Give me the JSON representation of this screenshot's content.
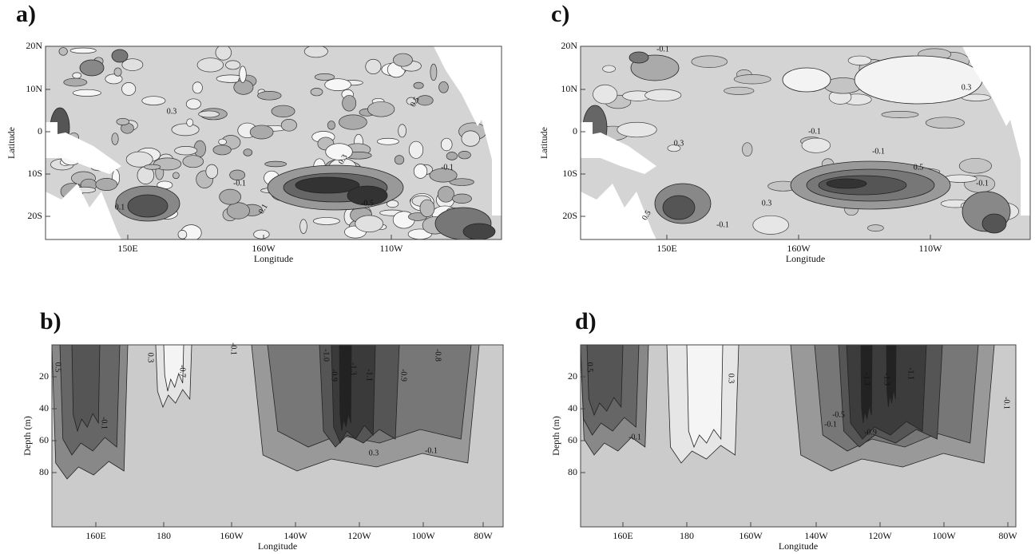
{
  "panels": [
    {
      "label": "a)",
      "xlabel": "Longitude",
      "ylabel": "Latitude",
      "xticks": [
        "150E",
        "160W",
        "110W"
      ],
      "yticks": [
        "20N",
        "10N",
        "0",
        "10S",
        "20S"
      ],
      "contour_labels": [
        "0.3",
        "-0.1",
        "0.1",
        "0.3",
        "-0.5",
        "0.5",
        "-0.1",
        "0.1"
      ]
    },
    {
      "label": "b)",
      "xlabel": "Longitude",
      "ylabel": "Depth (m)",
      "xticks": [
        "160E",
        "180",
        "160W",
        "140W",
        "120W",
        "100W",
        "80W"
      ],
      "yticks": [
        "20",
        "40",
        "60",
        "80"
      ],
      "contour_labels": [
        "0.5",
        "-0.1",
        "0.3",
        "-0.7",
        "-0.1",
        "-1.0",
        "-0.9",
        "-1.3",
        "-1.1",
        "-0.9",
        "-0.8",
        "0.3",
        "-0.1"
      ]
    },
    {
      "label": "c)",
      "xlabel": "Longitude",
      "ylabel": "Latitude",
      "xticks": [
        "150E",
        "160W",
        "110W"
      ],
      "yticks": [
        "20N",
        "10N",
        "0",
        "10S",
        "20S"
      ],
      "contour_labels": [
        "-0.1",
        "0.3",
        "0.3",
        "-0.1",
        "0.5",
        "0.3",
        "-0.1",
        "0.5",
        "-0.1",
        "-0.1"
      ]
    },
    {
      "label": "d)",
      "xlabel": "Longitude",
      "ylabel": "Depth (m)",
      "xticks": [
        "160E",
        "180",
        "160W",
        "140W",
        "120W",
        "100W",
        "80W"
      ],
      "yticks": [
        "20",
        "40",
        "60",
        "80"
      ],
      "contour_labels": [
        "0.5",
        "-0.1",
        "0.3",
        "-1.3",
        "-1.3",
        "-1.1",
        "-0.5",
        "-0.1",
        "-0.9",
        "-0.1"
      ]
    }
  ]
}
